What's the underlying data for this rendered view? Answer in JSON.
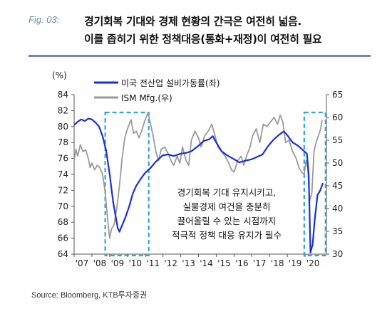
{
  "header": {
    "fig_label": "Fig. 03:",
    "title_line1": "경기회복 기대와 경제 현황의 간극은 여전히 넓음.",
    "title_line2": "이를 좁히기 위한 정책대응(통화+재정)이 여전히 필요"
  },
  "source": "Source: Bloomberg, KTB투자증권",
  "colors": {
    "title_rule": "#6d88a8",
    "utilization": "#1a2fd6",
    "ism": "#9a9a9a",
    "highlight_box": "#2ea6dc"
  },
  "chart_data": {
    "type": "line",
    "left_axis_unit": "(%)",
    "left_ylim": [
      64,
      84
    ],
    "left_ticks": [
      64,
      66,
      68,
      70,
      72,
      74,
      76,
      78,
      80,
      82,
      84
    ],
    "right_ylim": [
      30,
      65
    ],
    "right_ticks": [
      30,
      35,
      40,
      45,
      50,
      55,
      60,
      65
    ],
    "x_range": [
      2007.0,
      2021.2
    ],
    "x_tick_labels": [
      "'07",
      "'08",
      "'09",
      "'10",
      "'11",
      "'12",
      "'13",
      "'14",
      "'15",
      "'16",
      "'17",
      "'18",
      "'19",
      "'20"
    ],
    "x_tick_years": [
      2007,
      2008,
      2009,
      2010,
      2011,
      2012,
      2013,
      2014,
      2015,
      2016,
      2017,
      2018,
      2019,
      2020
    ],
    "series": [
      {
        "name": "미국 전산업 설비가동률(좌)",
        "axis": "left",
        "points": [
          [
            2007.0,
            80.2
          ],
          [
            2007.2,
            80.6
          ],
          [
            2007.4,
            80.9
          ],
          [
            2007.6,
            80.7
          ],
          [
            2007.8,
            81.0
          ],
          [
            2008.0,
            80.9
          ],
          [
            2008.2,
            80.5
          ],
          [
            2008.4,
            80.0
          ],
          [
            2008.6,
            78.8
          ],
          [
            2008.8,
            77.0
          ],
          [
            2009.0,
            74.0
          ],
          [
            2009.2,
            70.5
          ],
          [
            2009.45,
            67.3
          ],
          [
            2009.55,
            66.8
          ],
          [
            2009.7,
            67.6
          ],
          [
            2009.9,
            68.7
          ],
          [
            2010.1,
            70.0
          ],
          [
            2010.3,
            71.6
          ],
          [
            2010.5,
            72.6
          ],
          [
            2010.8,
            73.6
          ],
          [
            2011.0,
            74.2
          ],
          [
            2011.3,
            74.8
          ],
          [
            2011.6,
            75.6
          ],
          [
            2012.0,
            76.4
          ],
          [
            2012.3,
            76.5
          ],
          [
            2012.6,
            76.3
          ],
          [
            2013.0,
            76.6
          ],
          [
            2013.3,
            76.7
          ],
          [
            2013.6,
            76.9
          ],
          [
            2014.0,
            77.6
          ],
          [
            2014.3,
            78.2
          ],
          [
            2014.6,
            78.4
          ],
          [
            2014.8,
            78.8
          ],
          [
            2015.0,
            78.0
          ],
          [
            2015.3,
            76.9
          ],
          [
            2015.6,
            76.4
          ],
          [
            2016.0,
            75.9
          ],
          [
            2016.3,
            75.5
          ],
          [
            2016.6,
            75.7
          ],
          [
            2017.0,
            75.9
          ],
          [
            2017.3,
            76.2
          ],
          [
            2017.6,
            76.5
          ],
          [
            2017.9,
            77.5
          ],
          [
            2018.2,
            78.3
          ],
          [
            2018.5,
            78.9
          ],
          [
            2018.8,
            79.4
          ],
          [
            2019.0,
            78.9
          ],
          [
            2019.3,
            78.0
          ],
          [
            2019.6,
            77.6
          ],
          [
            2019.9,
            77.0
          ],
          [
            2020.1,
            76.6
          ],
          [
            2020.2,
            74.0
          ],
          [
            2020.3,
            64.2
          ],
          [
            2020.42,
            65.2
          ],
          [
            2020.55,
            68.5
          ],
          [
            2020.7,
            71.4
          ],
          [
            2020.85,
            72.0
          ],
          [
            2021.0,
            72.9
          ]
        ]
      },
      {
        "name": "ISM Mfg.(우)",
        "axis": "right",
        "points": [
          [
            2007.0,
            50.5
          ],
          [
            2007.1,
            53.0
          ],
          [
            2007.2,
            51.5
          ],
          [
            2007.35,
            54.0
          ],
          [
            2007.5,
            52.5
          ],
          [
            2007.65,
            52.9
          ],
          [
            2007.8,
            51.0
          ],
          [
            2007.9,
            49.0
          ],
          [
            2008.0,
            50.0
          ],
          [
            2008.15,
            48.5
          ],
          [
            2008.3,
            49.5
          ],
          [
            2008.45,
            49.0
          ],
          [
            2008.6,
            47.5
          ],
          [
            2008.75,
            43.5
          ],
          [
            2008.9,
            37.0
          ],
          [
            2009.0,
            33.5
          ],
          [
            2009.1,
            35.5
          ],
          [
            2009.25,
            36.5
          ],
          [
            2009.4,
            40.0
          ],
          [
            2009.55,
            45.0
          ],
          [
            2009.7,
            51.0
          ],
          [
            2009.85,
            55.5
          ],
          [
            2010.0,
            57.5
          ],
          [
            2010.2,
            59.5
          ],
          [
            2010.35,
            56.5
          ],
          [
            2010.5,
            57.0
          ],
          [
            2010.65,
            55.5
          ],
          [
            2010.8,
            57.0
          ],
          [
            2011.0,
            59.5
          ],
          [
            2011.15,
            61.0
          ],
          [
            2011.3,
            58.5
          ],
          [
            2011.45,
            56.0
          ],
          [
            2011.6,
            52.5
          ],
          [
            2011.75,
            50.5
          ],
          [
            2011.9,
            53.0
          ],
          [
            2012.1,
            53.5
          ],
          [
            2012.3,
            52.0
          ],
          [
            2012.45,
            50.5
          ],
          [
            2012.6,
            49.5
          ],
          [
            2012.8,
            51.5
          ],
          [
            2012.95,
            50.0
          ],
          [
            2013.1,
            53.5
          ],
          [
            2013.3,
            50.5
          ],
          [
            2013.45,
            49.5
          ],
          [
            2013.6,
            55.0
          ],
          [
            2013.8,
            57.0
          ],
          [
            2014.0,
            55.5
          ],
          [
            2014.15,
            53.5
          ],
          [
            2014.35,
            56.0
          ],
          [
            2014.55,
            57.0
          ],
          [
            2014.75,
            58.5
          ],
          [
            2014.9,
            56.5
          ],
          [
            2015.1,
            53.5
          ],
          [
            2015.3,
            52.5
          ],
          [
            2015.5,
            51.5
          ],
          [
            2015.7,
            50.0
          ],
          [
            2015.85,
            48.5
          ],
          [
            2016.0,
            48.0
          ],
          [
            2016.2,
            50.5
          ],
          [
            2016.4,
            51.5
          ],
          [
            2016.55,
            49.5
          ],
          [
            2016.7,
            51.5
          ],
          [
            2016.9,
            53.5
          ],
          [
            2017.05,
            56.0
          ],
          [
            2017.25,
            57.5
          ],
          [
            2017.45,
            54.5
          ],
          [
            2017.65,
            58.5
          ],
          [
            2017.85,
            58.0
          ],
          [
            2018.05,
            59.0
          ],
          [
            2018.25,
            60.0
          ],
          [
            2018.45,
            58.5
          ],
          [
            2018.6,
            60.5
          ],
          [
            2018.75,
            59.0
          ],
          [
            2018.9,
            54.5
          ],
          [
            2019.1,
            55.0
          ],
          [
            2019.3,
            52.5
          ],
          [
            2019.5,
            51.0
          ],
          [
            2019.65,
            49.0
          ],
          [
            2019.8,
            48.0
          ],
          [
            2019.95,
            47.5
          ],
          [
            2020.05,
            50.5
          ],
          [
            2020.15,
            49.0
          ],
          [
            2020.25,
            41.5
          ],
          [
            2020.38,
            43.5
          ],
          [
            2020.5,
            52.5
          ],
          [
            2020.62,
            54.5
          ],
          [
            2020.75,
            56.0
          ],
          [
            2020.88,
            57.5
          ],
          [
            2020.96,
            59.5
          ]
        ]
      }
    ],
    "highlight_boxes": [
      {
        "x0": 2008.75,
        "x1": 2011.2
      },
      {
        "x0": 2019.95,
        "x1": 2021.15
      }
    ],
    "annotation_lines": [
      "경기회복 기대 유지시키고,",
      "실물경제 여건을 충분히",
      "끌어올릴 수 있는 시점까지",
      "적극적 정책 대응 유지가 필수"
    ]
  }
}
